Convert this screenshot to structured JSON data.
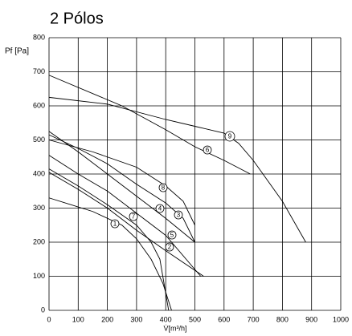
{
  "chart_data": {
    "type": "line",
    "title": "2 Pólos",
    "ylabel": "Pf [Pa]",
    "xlabel": "V̇[m³/h]",
    "xlim": [
      0,
      1000
    ],
    "xticks": [
      0,
      100,
      200,
      300,
      400,
      500,
      600,
      700,
      800,
      900,
      1000
    ],
    "ylim": [
      0,
      800
    ],
    "yticks": [
      0,
      100,
      200,
      300,
      400,
      500,
      600,
      700,
      800
    ],
    "grid": true,
    "series": [
      {
        "name": "1",
        "color": "#000000",
        "x": [
          0,
          150,
          250,
          300,
          350,
          390,
          420
        ],
        "values": [
          330,
          290,
          250,
          210,
          150,
          80,
          0
        ]
      },
      {
        "name": "2",
        "color": "#000000",
        "x": [
          0,
          100,
          200,
          300,
          400,
          530
        ],
        "values": [
          405,
          355,
          300,
          235,
          175,
          100
        ]
      },
      {
        "name": "3",
        "color": "#000000",
        "x": [
          0,
          100,
          200,
          300,
          400,
          460,
          500
        ],
        "values": [
          515,
          475,
          430,
          370,
          315,
          270,
          200
        ]
      },
      {
        "name": "4",
        "color": "#000000",
        "x": [
          0,
          100,
          200,
          300,
          400,
          500
        ],
        "values": [
          525,
          465,
          400,
          335,
          270,
          200
        ]
      },
      {
        "name": "5",
        "color": "#000000",
        "x": [
          0,
          100,
          200,
          300,
          400,
          520
        ],
        "values": [
          455,
          400,
          350,
          285,
          220,
          100
        ]
      },
      {
        "name": "6",
        "color": "#000000",
        "x": [
          0,
          250,
          400,
          500,
          600,
          690
        ],
        "values": [
          690,
          600,
          530,
          480,
          440,
          400
        ]
      },
      {
        "name": "7",
        "color": "#000000",
        "x": [
          0,
          100,
          200,
          300,
          350,
          380,
          410
        ],
        "values": [
          415,
          365,
          310,
          250,
          200,
          150,
          0
        ]
      },
      {
        "name": "8",
        "color": "#000000",
        "x": [
          0,
          150,
          300,
          400,
          460,
          500
        ],
        "values": [
          500,
          465,
          420,
          365,
          320,
          250
        ]
      },
      {
        "name": "9",
        "color": "#000000",
        "x": [
          0,
          200,
          400,
          500,
          600,
          650,
          700,
          800,
          880
        ],
        "values": [
          625,
          605,
          560,
          540,
          520,
          490,
          440,
          320,
          200
        ]
      }
    ]
  }
}
